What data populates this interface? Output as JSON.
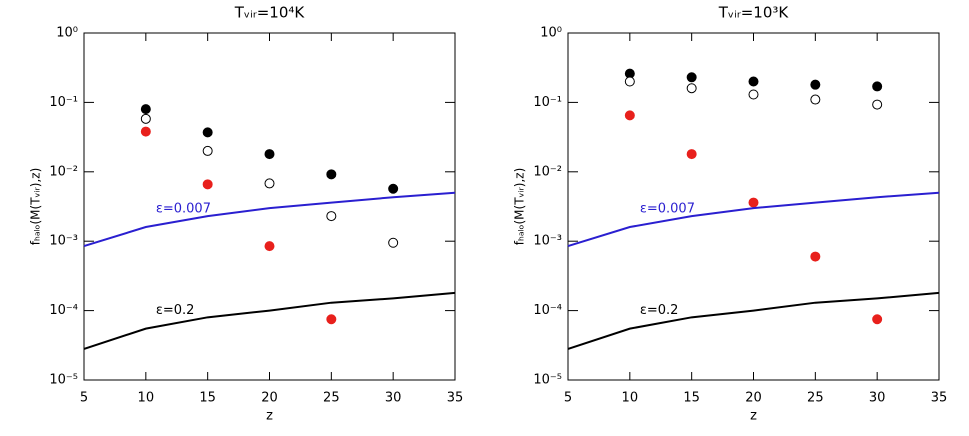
{
  "chart_data": [
    {
      "type": "scatter",
      "title": "Tᵥᵢᵣ=10⁴K",
      "x_label": "z",
      "y_label": "fₕₐₗₒ(M(Tᵥᵢᵣ),z)",
      "x": [
        5,
        10,
        15,
        20,
        25,
        30,
        35
      ],
      "xlim": [
        5,
        35
      ],
      "xticks": [
        5,
        10,
        15,
        20,
        25,
        30,
        35
      ],
      "ylim": [
        1e-05,
        1
      ],
      "log_y": true,
      "yticks": [
        {
          "value": 1e-05,
          "label": "10⁻⁵"
        },
        {
          "value": 0.0001,
          "label": "10⁻⁴"
        },
        {
          "value": 0.001,
          "label": "10⁻³"
        },
        {
          "value": 0.01,
          "label": "10⁻²"
        },
        {
          "value": 0.1,
          "label": "10⁻¹"
        },
        {
          "value": 1,
          "label": "10⁰"
        }
      ],
      "series": [
        {
          "color": "#000000",
          "marker": "filled",
          "values": [
            null,
            0.08,
            0.037,
            0.018,
            0.0092,
            0.0057,
            null
          ]
        },
        {
          "color": "#000000",
          "marker": "open",
          "values": [
            null,
            0.058,
            0.02,
            0.0068,
            0.0023,
            0.00095,
            null
          ]
        },
        {
          "color": "#e8201c",
          "marker": "filled",
          "values": [
            null,
            0.038,
            0.0066,
            0.00085,
            7.5e-05,
            null,
            null
          ]
        },
        {
          "name": "ε=0.007",
          "color": "#2a1fd0",
          "marker": "line",
          "values": [
            0.00085,
            0.0016,
            0.0023,
            0.003,
            0.0036,
            0.0043,
            0.005
          ]
        },
        {
          "name": "ε=0.2",
          "color": "#000000",
          "marker": "line",
          "values": [
            2.8e-05,
            5.5e-05,
            8e-05,
            0.0001,
            0.00013,
            0.00015,
            0.00018
          ]
        }
      ]
    },
    {
      "type": "scatter",
      "title": "Tᵥᵢᵣ=10³K",
      "x_label": "z",
      "y_label": "fₕₐₗₒ(M(Tᵥᵢᵣ),z)",
      "x": [
        5,
        10,
        15,
        20,
        25,
        30,
        35
      ],
      "xlim": [
        5,
        35
      ],
      "xticks": [
        5,
        10,
        15,
        20,
        25,
        30,
        35
      ],
      "ylim": [
        1e-05,
        1
      ],
      "log_y": true,
      "yticks": [
        {
          "value": 1e-05,
          "label": "10⁻⁵"
        },
        {
          "value": 0.0001,
          "label": "10⁻⁴"
        },
        {
          "value": 0.001,
          "label": "10⁻³"
        },
        {
          "value": 0.01,
          "label": "10⁻²"
        },
        {
          "value": 0.1,
          "label": "10⁻¹"
        },
        {
          "value": 1,
          "label": "10⁰"
        }
      ],
      "series": [
        {
          "color": "#000000",
          "marker": "filled",
          "values": [
            null,
            0.26,
            0.23,
            0.2,
            0.18,
            0.17,
            null
          ]
        },
        {
          "color": "#000000",
          "marker": "open",
          "values": [
            null,
            0.2,
            0.16,
            0.13,
            0.11,
            0.093,
            null
          ]
        },
        {
          "color": "#e8201c",
          "marker": "filled",
          "values": [
            null,
            0.065,
            0.018,
            0.0036,
            0.0006,
            7.5e-05,
            null
          ]
        },
        {
          "name": "ε=0.007",
          "color": "#2a1fd0",
          "marker": "line",
          "values": [
            0.00085,
            0.0016,
            0.0023,
            0.003,
            0.0036,
            0.0043,
            0.005
          ]
        },
        {
          "name": "ε=0.2",
          "color": "#000000",
          "marker": "line",
          "values": [
            2.8e-05,
            5.5e-05,
            8e-05,
            0.0001,
            0.00013,
            0.00015,
            0.00018
          ]
        }
      ]
    }
  ]
}
